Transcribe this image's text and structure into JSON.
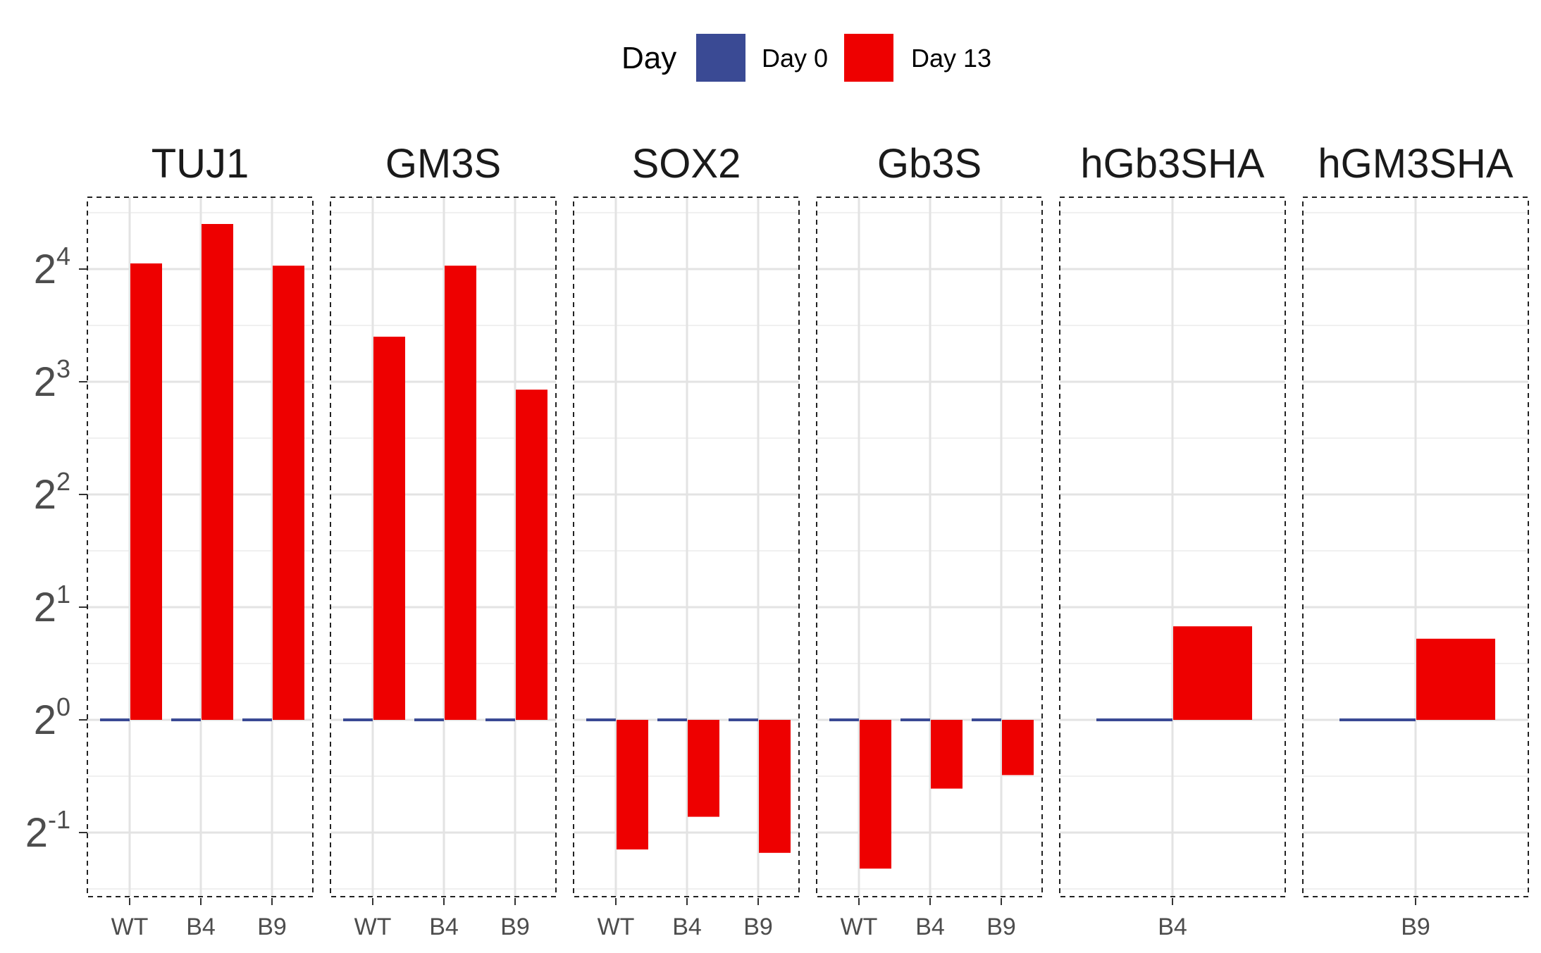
{
  "chart_data": {
    "type": "bar",
    "layout": "faceted",
    "legend": {
      "title": "Day",
      "placement": "top",
      "entries": [
        {
          "label": "Day 0",
          "color": "#3A4A94"
        },
        {
          "label": "Day 13",
          "color": "#EE0000"
        }
      ]
    },
    "y_axis": {
      "scale": "log2",
      "ylim": [
        -1.3,
        4.5
      ],
      "ticks": [
        {
          "value": -1,
          "base": "2",
          "exp": "-1"
        },
        {
          "value": 0,
          "base": "2",
          "exp": "0"
        },
        {
          "value": 1,
          "base": "2",
          "exp": "1"
        },
        {
          "value": 2,
          "base": "2",
          "exp": "2"
        },
        {
          "value": 3,
          "base": "2",
          "exp": "3"
        },
        {
          "value": 4,
          "base": "2",
          "exp": "4"
        }
      ]
    },
    "grid": true,
    "facets": [
      {
        "title": "TUJ1",
        "categories": [
          "WT",
          "B4",
          "B9"
        ],
        "series": [
          {
            "name": "Day 0",
            "values": [
              0,
              0,
              0
            ]
          },
          {
            "name": "Day 13",
            "values": [
              4.05,
              4.4,
              4.03
            ]
          }
        ]
      },
      {
        "title": "GM3S",
        "categories": [
          "WT",
          "B4",
          "B9"
        ],
        "series": [
          {
            "name": "Day 0",
            "values": [
              0,
              0,
              0
            ]
          },
          {
            "name": "Day 13",
            "values": [
              3.4,
              4.03,
              2.93
            ]
          }
        ]
      },
      {
        "title": "SOX2",
        "categories": [
          "WT",
          "B4",
          "B9"
        ],
        "series": [
          {
            "name": "Day 0",
            "values": [
              0,
              0,
              0
            ]
          },
          {
            "name": "Day 13",
            "values": [
              -1.15,
              -0.86,
              -1.18
            ]
          }
        ]
      },
      {
        "title": "Gb3S",
        "categories": [
          "WT",
          "B4",
          "B9"
        ],
        "series": [
          {
            "name": "Day 0",
            "values": [
              0,
              0,
              0
            ]
          },
          {
            "name": "Day 13",
            "values": [
              -1.32,
              -0.61,
              -0.49
            ]
          }
        ]
      },
      {
        "title": "hGb3SHA",
        "categories": [
          "B4"
        ],
        "series": [
          {
            "name": "Day 0",
            "values": [
              0
            ]
          },
          {
            "name": "Day 13",
            "values": [
              0.83
            ]
          }
        ]
      },
      {
        "title": "hGM3SHA",
        "categories": [
          "B9"
        ],
        "series": [
          {
            "name": "Day 0",
            "values": [
              0
            ]
          },
          {
            "name": "Day 13",
            "values": [
              0.72
            ]
          }
        ]
      }
    ]
  }
}
